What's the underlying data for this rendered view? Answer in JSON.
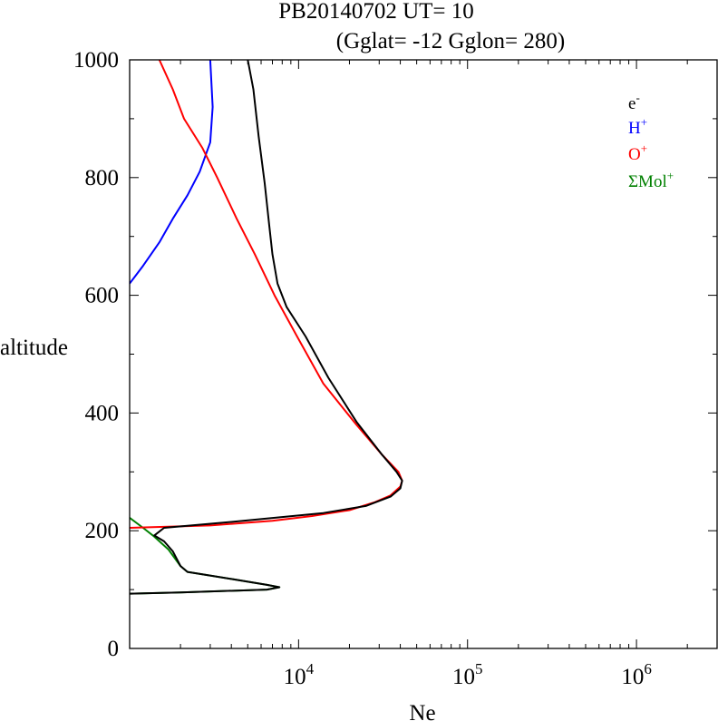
{
  "chart_data": {
    "type": "line",
    "title": "PB20140702   UT=  10",
    "subtitle": "(Gglat= -12   Gglon=  280)",
    "xlabel": "Ne",
    "ylabel": "altitude",
    "xscale": "log",
    "xlim": [
      1000,
      3000000
    ],
    "ylim": [
      0,
      1000
    ],
    "yticks": [
      "0",
      "200",
      "400",
      "600",
      "800",
      "1000"
    ],
    "xticks": [
      {
        "base": "10",
        "exp": "4",
        "value": 10000
      },
      {
        "base": "10",
        "exp": "5",
        "value": 100000
      },
      {
        "base": "10",
        "exp": "6",
        "value": 1000000
      }
    ],
    "legend_position": "top-right",
    "legend": [
      {
        "base": "e",
        "sup": "-",
        "color": "#000000"
      },
      {
        "base": "H",
        "sup": "+",
        "color": "#0000ff"
      },
      {
        "base": "O",
        "sup": "+",
        "color": "#ff0000"
      },
      {
        "base": "ΣMol",
        "sup": "+",
        "color": "#008000"
      }
    ],
    "series": [
      {
        "color": "#008000",
        "points": [
          [
            1000,
            222
          ],
          [
            1200,
            205
          ],
          [
            1400,
            190
          ],
          [
            1700,
            168
          ],
          [
            2000,
            140
          ],
          [
            2200,
            130
          ],
          [
            4000,
            118
          ],
          [
            6500,
            108
          ],
          [
            7700,
            104
          ],
          [
            6500,
            100
          ],
          [
            2000,
            95
          ],
          [
            1000,
            93
          ]
        ]
      },
      {
        "color": "#0000ff",
        "points": [
          [
            1000,
            620
          ],
          [
            1200,
            650
          ],
          [
            1500,
            690
          ],
          [
            1800,
            730
          ],
          [
            2200,
            770
          ],
          [
            2600,
            810
          ],
          [
            3000,
            860
          ],
          [
            3100,
            920
          ],
          [
            3000,
            1000
          ]
        ]
      },
      {
        "color": "#ff0000",
        "points": [
          [
            1000,
            205
          ],
          [
            3000,
            209
          ],
          [
            7000,
            217
          ],
          [
            12000,
            225
          ],
          [
            20000,
            235
          ],
          [
            28000,
            248
          ],
          [
            35000,
            260
          ],
          [
            40000,
            275
          ],
          [
            41000,
            285
          ],
          [
            39000,
            300
          ],
          [
            31000,
            330
          ],
          [
            22000,
            380
          ],
          [
            14000,
            450
          ],
          [
            9800,
            530
          ],
          [
            7200,
            600
          ],
          [
            5500,
            670
          ],
          [
            4300,
            730
          ],
          [
            3300,
            800
          ],
          [
            2700,
            850
          ],
          [
            2100,
            900
          ],
          [
            1800,
            950
          ],
          [
            1500,
            1000
          ]
        ]
      },
      {
        "color": "#000000",
        "points": [
          [
            5000,
            1000
          ],
          [
            5400,
            950
          ],
          [
            5800,
            870
          ],
          [
            6300,
            790
          ],
          [
            6700,
            720
          ],
          [
            7000,
            670
          ],
          [
            7500,
            620
          ],
          [
            8500,
            580
          ],
          [
            11000,
            530
          ],
          [
            15000,
            460
          ],
          [
            22000,
            385
          ],
          [
            31000,
            330
          ],
          [
            38000,
            300
          ],
          [
            41000,
            285
          ],
          [
            40000,
            272
          ],
          [
            35000,
            258
          ],
          [
            25000,
            242
          ],
          [
            14000,
            230
          ],
          [
            4000,
            215
          ],
          [
            1600,
            205
          ],
          [
            1400,
            192
          ],
          [
            1600,
            182
          ],
          [
            1800,
            165
          ],
          [
            2000,
            140
          ],
          [
            2200,
            130
          ],
          [
            4000,
            118
          ],
          [
            6500,
            108
          ],
          [
            7700,
            104
          ],
          [
            6500,
            100
          ],
          [
            2000,
            95
          ],
          [
            1000,
            93
          ]
        ]
      }
    ]
  }
}
